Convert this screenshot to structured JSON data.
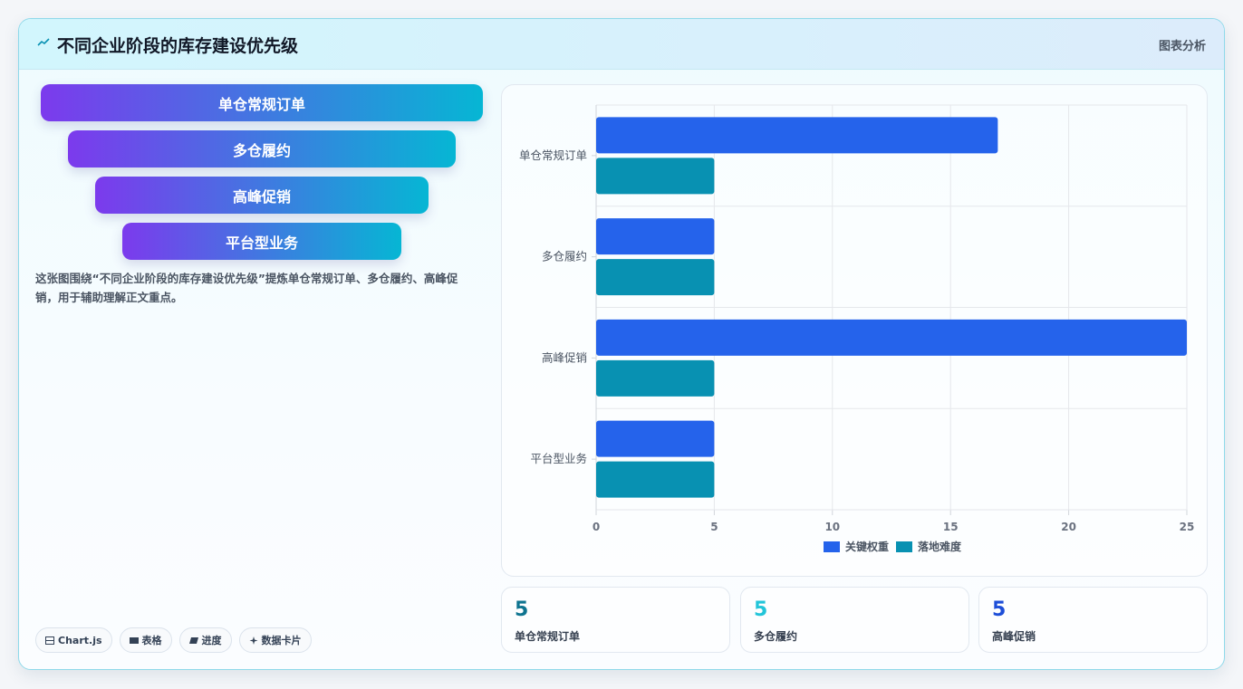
{
  "header": {
    "title": "不同企业阶段的库存建设优先级",
    "tag": "图表分析"
  },
  "funnel": [
    "单仓常规订单",
    "多仓履约",
    "高峰促销",
    "平台型业务"
  ],
  "description": "这张图围绕“不同企业阶段的库存建设优先级”提炼单仓常规订单、多仓履约、高峰促销，用于辅助理解正文重点。",
  "chips": [
    {
      "label": "Chart.js",
      "icon": "chart-icon"
    },
    {
      "label": "表格",
      "icon": "table-icon"
    },
    {
      "label": "进度",
      "icon": "progress-icon"
    },
    {
      "label": "数据卡片",
      "icon": "sparkle-icon"
    }
  ],
  "chart_data": {
    "type": "bar",
    "orientation": "horizontal",
    "categories": [
      "单仓常规订单",
      "多仓履约",
      "高峰促销",
      "平台型业务"
    ],
    "series": [
      {
        "name": "关键权重",
        "values": [
          17,
          5,
          25,
          5
        ],
        "color": "#2563eb"
      },
      {
        "name": "落地难度",
        "values": [
          5,
          5,
          5,
          5
        ],
        "color": "#0891b2"
      }
    ],
    "xlim": [
      0,
      25
    ],
    "xticks": [
      0,
      5,
      10,
      15,
      20,
      25
    ],
    "grid": true,
    "legend": "bottom"
  },
  "stats": [
    {
      "value": "5",
      "label": "单仓常规订单",
      "color": "#0e7490"
    },
    {
      "value": "5",
      "label": "多仓履约",
      "color": "#22c5d9"
    },
    {
      "value": "5",
      "label": "高峰促销",
      "color": "#1d4ed8"
    }
  ]
}
